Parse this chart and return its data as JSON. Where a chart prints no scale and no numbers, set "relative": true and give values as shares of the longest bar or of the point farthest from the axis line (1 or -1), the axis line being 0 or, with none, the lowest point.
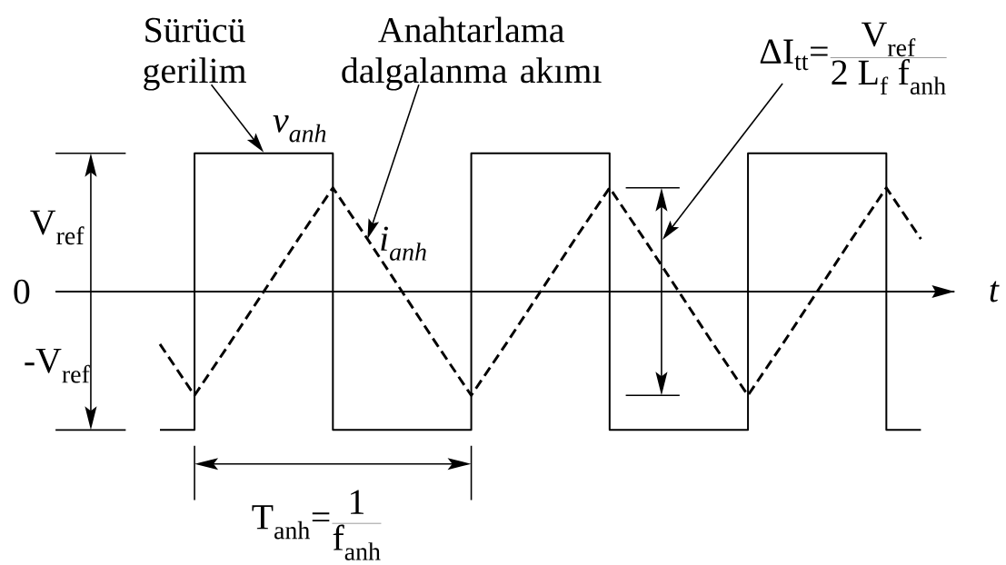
{
  "chart_data": {
    "type": "line",
    "relative": true,
    "xlabel": "t",
    "categories": [
      null,
      null,
      null,
      null,
      null,
      null,
      null,
      null,
      null,
      null,
      null,
      null,
      null,
      null,
      null,
      null,
      null,
      null,
      null,
      null,
      null,
      null,
      null
    ],
    "series": [
      {
        "type": "step",
        "color": "#000000",
        "line_style": "solid",
        "values": [
          -1,
          1,
          1,
          1,
          1,
          -1,
          -1,
          -1,
          -1,
          1,
          1,
          1,
          1,
          -1,
          -1,
          -1,
          -1,
          1,
          1,
          1,
          1,
          -1,
          -1
        ]
      },
      {
        "color": "#000000",
        "line_style": "dashed",
        "values": [
          -0.38,
          -0.75,
          -0.38,
          0,
          0.38,
          0.75,
          0.38,
          0,
          -0.38,
          -0.75,
          -0.38,
          0,
          0.38,
          0.75,
          0.38,
          0,
          -0.38,
          -0.75,
          -0.38,
          0,
          0.38,
          0.75,
          0.38
        ]
      }
    ],
    "annotations": [
      "Sürücü gerilim",
      "Anahtarlama dalgalanma akımı",
      "\\mbox{Δ}\\mathrm{I}_{\\mathrm{tt}}\\mbox{=}\\frac{\\mathrm{V}_{\\mathrm{ref}}}{\\mathrm{2}\\ \\mathrm{L}_{\\mathrm{f}}\\ \\mathrm{f}_{\\mathrm{anh}}}",
      "v$_{anh}$",
      "V$_{ref}$",
      "i$_{anh}$",
      "0",
      "-V$_{ref}$",
      "\\mathrm{T}_{\\mathrm{anh}}\\mbox{=}\\frac{\\mathrm{1}}{\\mathrm{f}_{\\mathrm{anh}}}"
    ]
  }
}
